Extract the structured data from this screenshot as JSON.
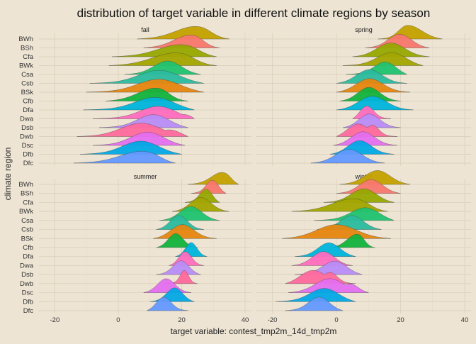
{
  "chart_data": {
    "type": "ridgeline",
    "title": "distribution of target variable in different climate regions by season",
    "xlabel": "target variable: contest_tmp2m_14d_tmp2m",
    "ylabel": "climate region",
    "xlim": [
      -25,
      42
    ],
    "x_ticks": [
      -20,
      0,
      20,
      40
    ],
    "categories": [
      "BWh",
      "BSh",
      "Cfa",
      "BWk",
      "Csa",
      "Csb",
      "BSk",
      "Cfb",
      "Dfa",
      "Dwa",
      "Dsb",
      "Dwb",
      "Dsc",
      "Dfb",
      "Dfc"
    ],
    "colors": {
      "BWh": "#c4a100",
      "BSh": "#f8766d",
      "Cfa": "#96a800",
      "BWk": "#a3a500",
      "Csa": "#1fc26f",
      "Csb": "#2bba9f",
      "BSk": "#e6860f",
      "Cfb": "#12b23c",
      "Dfa": "#00b4dc",
      "Dwa": "#ff6bbf",
      "Dsb": "#b98cf7",
      "Dwb": "#ff699c",
      "Dsc": "#e56ef0",
      "Dfb": "#02a8e6",
      "Dfc": "#6399ff"
    },
    "panels": [
      {
        "season": "fall",
        "series": [
          {
            "region": "BWh",
            "x_min": 6,
            "x_max": 35,
            "peak": 26,
            "shape": "skew-left"
          },
          {
            "region": "BSh",
            "x_min": 8,
            "x_max": 32,
            "peak": 24,
            "shape": "skew-left"
          },
          {
            "region": "Cfa",
            "x_min": -2,
            "x_max": 31,
            "peak": 22,
            "shape": "skew-left"
          },
          {
            "region": "BWk",
            "x_min": -3,
            "x_max": 31,
            "peak": 20,
            "shape": "skew-left"
          },
          {
            "region": "Csa",
            "x_min": 2,
            "x_max": 26,
            "peak": 16,
            "shape": "normal"
          },
          {
            "region": "Csb",
            "x_min": -9,
            "x_max": 27,
            "peak": 14,
            "shape": "normal"
          },
          {
            "region": "BSk",
            "x_min": -10,
            "x_max": 27,
            "peak": 14,
            "shape": "normal"
          },
          {
            "region": "Cfb",
            "x_min": -4,
            "x_max": 22,
            "peak": 13,
            "shape": "skew-left"
          },
          {
            "region": "Dfa",
            "x_min": -11,
            "x_max": 24,
            "peak": 13,
            "shape": "normal"
          },
          {
            "region": "Dwa",
            "x_min": -8,
            "x_max": 24,
            "peak": 14,
            "shape": "bimodal"
          },
          {
            "region": "Dsb",
            "x_min": -6,
            "x_max": 22,
            "peak": 12,
            "shape": "normal"
          },
          {
            "region": "Dwb",
            "x_min": -13,
            "x_max": 22,
            "peak": 8,
            "shape": "bimodal"
          },
          {
            "region": "Dsc",
            "x_min": -8,
            "x_max": 21,
            "peak": 10,
            "shape": "normal"
          },
          {
            "region": "Dfb",
            "x_min": -12,
            "x_max": 20,
            "peak": 8,
            "shape": "normal"
          },
          {
            "region": "Dfc",
            "x_min": -14,
            "x_max": 18,
            "peak": 10,
            "shape": "skew-left"
          }
        ]
      },
      {
        "season": "spring",
        "series": [
          {
            "region": "BWh",
            "x_min": 13,
            "x_max": 33,
            "peak": 22,
            "shape": "skew-right"
          },
          {
            "region": "BSh",
            "x_min": 9,
            "x_max": 29,
            "peak": 20,
            "shape": "normal"
          },
          {
            "region": "Cfa",
            "x_min": 5,
            "x_max": 29,
            "peak": 17,
            "shape": "normal"
          },
          {
            "region": "BWk",
            "x_min": 2,
            "x_max": 27,
            "peak": 18,
            "shape": "normal"
          },
          {
            "region": "Csa",
            "x_min": 3,
            "x_max": 22,
            "peak": 16,
            "shape": "normal"
          },
          {
            "region": "Csb",
            "x_min": 0,
            "x_max": 22,
            "peak": 10,
            "shape": "normal"
          },
          {
            "region": "BSk",
            "x_min": 0,
            "x_max": 23,
            "peak": 10,
            "shape": "normal"
          },
          {
            "region": "Cfb",
            "x_min": 1,
            "x_max": 20,
            "peak": 10,
            "shape": "normal"
          },
          {
            "region": "Dfa",
            "x_min": 0,
            "x_max": 24,
            "peak": 11,
            "shape": "normal"
          },
          {
            "region": "Dwa",
            "x_min": 5,
            "x_max": 17,
            "peak": 9,
            "shape": "normal"
          },
          {
            "region": "Dsb",
            "x_min": 2,
            "x_max": 20,
            "peak": 10,
            "shape": "normal"
          },
          {
            "region": "Dwb",
            "x_min": 0,
            "x_max": 19,
            "peak": 6,
            "shape": "bimodal"
          },
          {
            "region": "Dsc",
            "x_min": -1,
            "x_max": 19,
            "peak": 8,
            "shape": "normal"
          },
          {
            "region": "Dfb",
            "x_min": -2,
            "x_max": 18,
            "peak": 7,
            "shape": "normal"
          },
          {
            "region": "Dfc",
            "x_min": -8,
            "x_max": 15,
            "peak": 4,
            "shape": "normal"
          }
        ]
      },
      {
        "season": "summer",
        "series": [
          {
            "region": "BWh",
            "x_min": 22,
            "x_max": 38,
            "peak": 34,
            "shape": "skew-left"
          },
          {
            "region": "BSh",
            "x_min": 23,
            "x_max": 34,
            "peak": 30,
            "shape": "normal"
          },
          {
            "region": "Cfa",
            "x_min": 21,
            "x_max": 32,
            "peak": 28,
            "shape": "normal"
          },
          {
            "region": "BWk",
            "x_min": 17,
            "x_max": 35,
            "peak": 26,
            "shape": "normal"
          },
          {
            "region": "Csa",
            "x_min": 13,
            "x_max": 32,
            "peak": 23,
            "shape": "normal"
          },
          {
            "region": "Csb",
            "x_min": 12,
            "x_max": 27,
            "peak": 19,
            "shape": "normal"
          },
          {
            "region": "BSk",
            "x_min": 11,
            "x_max": 31,
            "peak": 20,
            "shape": "normal"
          },
          {
            "region": "Cfb",
            "x_min": 12,
            "x_max": 25,
            "peak": 18,
            "shape": "normal"
          },
          {
            "region": "Dfa",
            "x_min": 18,
            "x_max": 28,
            "peak": 23,
            "shape": "normal"
          },
          {
            "region": "Dwa",
            "x_min": 16,
            "x_max": 27,
            "peak": 21,
            "shape": "normal"
          },
          {
            "region": "Dsb",
            "x_min": 12,
            "x_max": 26,
            "peak": 20,
            "shape": "normal"
          },
          {
            "region": "Dwb",
            "x_min": 14,
            "x_max": 25,
            "peak": 21,
            "shape": "narrow"
          },
          {
            "region": "Dsc",
            "x_min": 8,
            "x_max": 23,
            "peak": 15,
            "shape": "normal"
          },
          {
            "region": "Dfb",
            "x_min": 10,
            "x_max": 24,
            "peak": 18,
            "shape": "normal"
          },
          {
            "region": "Dfc",
            "x_min": 9,
            "x_max": 22,
            "peak": 14,
            "shape": "normal"
          }
        ]
      },
      {
        "season": "winter",
        "series": [
          {
            "region": "BWh",
            "x_min": 1,
            "x_max": 23,
            "peak": 13,
            "shape": "normal"
          },
          {
            "region": "BSh",
            "x_min": 0,
            "x_max": 20,
            "peak": 11,
            "shape": "normal"
          },
          {
            "region": "Cfa",
            "x_min": -4,
            "x_max": 18,
            "peak": 9,
            "shape": "normal"
          },
          {
            "region": "BWk",
            "x_min": -14,
            "x_max": 16,
            "peak": 7,
            "shape": "skew-left"
          },
          {
            "region": "Csa",
            "x_min": -7,
            "x_max": 18,
            "peak": 10,
            "shape": "normal"
          },
          {
            "region": "Csb",
            "x_min": -6,
            "x_max": 14,
            "peak": 5,
            "shape": "normal"
          },
          {
            "region": "BSk",
            "x_min": -17,
            "x_max": 17,
            "peak": 0,
            "shape": "normal"
          },
          {
            "region": "Cfb",
            "x_min": -2,
            "x_max": 12,
            "peak": 7,
            "shape": "skew-left"
          },
          {
            "region": "Dfa",
            "x_min": -13,
            "x_max": 6,
            "peak": -2,
            "shape": "normal"
          },
          {
            "region": "Dwa",
            "x_min": -14,
            "x_max": 5,
            "peak": -4,
            "shape": "normal"
          },
          {
            "region": "Dsb",
            "x_min": -13,
            "x_max": 8,
            "peak": 0,
            "shape": "normal"
          },
          {
            "region": "Dwb",
            "x_min": -16,
            "x_max": 6,
            "peak": -8,
            "shape": "bimodal"
          },
          {
            "region": "Dsc",
            "x_min": -15,
            "x_max": 10,
            "peak": -2,
            "shape": "bimodal"
          },
          {
            "region": "Dfb",
            "x_min": -19,
            "x_max": 6,
            "peak": -3,
            "shape": "normal"
          },
          {
            "region": "Dfc",
            "x_min": -16,
            "x_max": 2,
            "peak": -5,
            "shape": "normal"
          }
        ]
      }
    ],
    "grid": true,
    "legend": "none"
  }
}
